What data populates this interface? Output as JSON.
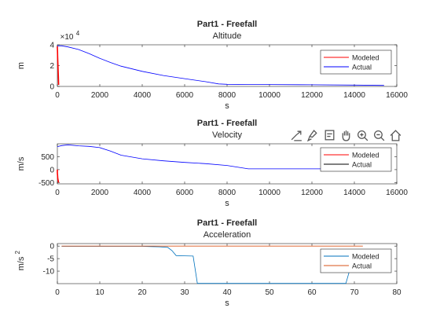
{
  "toolbar": {
    "buttons": [
      "export-icon",
      "brush-icon",
      "data-tip-icon",
      "pan-hand-icon",
      "zoom-in-icon",
      "zoom-out-icon",
      "home-icon"
    ]
  },
  "chart_data": [
    {
      "type": "line",
      "title": "Part1 - Freefall",
      "subtitle": "Altitude",
      "xlabel": "s",
      "ylabel": "m",
      "y_exponent_label": "×10",
      "y_exponent": "4",
      "xlim": [
        0,
        16000
      ],
      "ylim": [
        0,
        40000
      ],
      "xticks": [
        0,
        2000,
        4000,
        6000,
        8000,
        10000,
        12000,
        14000,
        16000
      ],
      "yticks": [
        0,
        2,
        4
      ],
      "ytick_values": [
        0,
        20000,
        40000
      ],
      "legend_position": "inside-right",
      "series": [
        {
          "name": "Modeled",
          "color": "#ff0000",
          "x": [
            0,
            0,
            6,
            12,
            20,
            30,
            45,
            60
          ],
          "y": [
            38500,
            37000,
            34000,
            30000,
            25000,
            19000,
            11000,
            1500
          ]
        },
        {
          "name": "Actual",
          "color": "#0000ff",
          "x": [
            0,
            200,
            500,
            1000,
            1500,
            2000,
            2500,
            3000,
            4000,
            5000,
            6000,
            7000,
            7600,
            8000,
            9000,
            10000,
            12000,
            14000,
            15400
          ],
          "y": [
            39000,
            39000,
            38000,
            35500,
            31500,
            27000,
            23000,
            19500,
            14500,
            10500,
            7500,
            4500,
            2400,
            2000,
            1900,
            1800,
            1600,
            1300,
            1000
          ]
        }
      ]
    },
    {
      "type": "line",
      "title": "Part1 - Freefall",
      "subtitle": "Velocity",
      "xlabel": "s",
      "ylabel": "m/s",
      "xlim": [
        0,
        16000
      ],
      "ylim": [
        -550,
        1000
      ],
      "xticks": [
        0,
        2000,
        4000,
        6000,
        8000,
        10000,
        12000,
        14000,
        16000
      ],
      "yticks": [
        -500,
        0,
        500
      ],
      "legend_position": "inside-right",
      "series": [
        {
          "name": "Modeled",
          "color": "#ff0000",
          "x": [
            0,
            0,
            10,
            20,
            40,
            60
          ],
          "y": [
            0,
            -120,
            -230,
            -330,
            -430,
            -500
          ]
        },
        {
          "name": "Actual",
          "color": "#000000",
          "x": [],
          "y": []
        },
        {
          "name": "",
          "color": "#0000ff",
          "x": [
            0,
            200,
            500,
            1000,
            1500,
            2000,
            2500,
            3000,
            4000,
            5000,
            6000,
            7000,
            8000,
            9000,
            10000,
            12000,
            14000,
            15400
          ],
          "y": [
            890,
            930,
            960,
            920,
            900,
            850,
            720,
            560,
            420,
            340,
            280,
            230,
            160,
            30,
            30,
            30,
            30,
            20
          ]
        }
      ]
    },
    {
      "type": "line",
      "title": "Part1 - Freefall",
      "subtitle": "Acceleration",
      "xlabel": "s",
      "ylabel": "m/s",
      "ylabel_superscript": "2",
      "xlim": [
        0,
        80
      ],
      "ylim": [
        -15,
        1
      ],
      "xticks": [
        0,
        10,
        20,
        30,
        40,
        50,
        60,
        70,
        80
      ],
      "yticks": [
        -10,
        -5,
        0
      ],
      "legend_position": "inside-right",
      "series": [
        {
          "name": "Modeled",
          "color": "#0072bd",
          "x": [
            1,
            10,
            20,
            22,
            24,
            26,
            27,
            28,
            30,
            32,
            33,
            68,
            69,
            69.5
          ],
          "y": [
            -0.1,
            -0.1,
            -0.1,
            -0.2,
            -0.3,
            -0.5,
            -1.8,
            -3.8,
            -3.9,
            -4.0,
            -14.9,
            -14.9,
            -9.0,
            -7.2
          ]
        },
        {
          "name": "Actual",
          "color": "#d95319",
          "x": [
            1,
            72
          ],
          "y": [
            0,
            0
          ]
        }
      ]
    }
  ]
}
